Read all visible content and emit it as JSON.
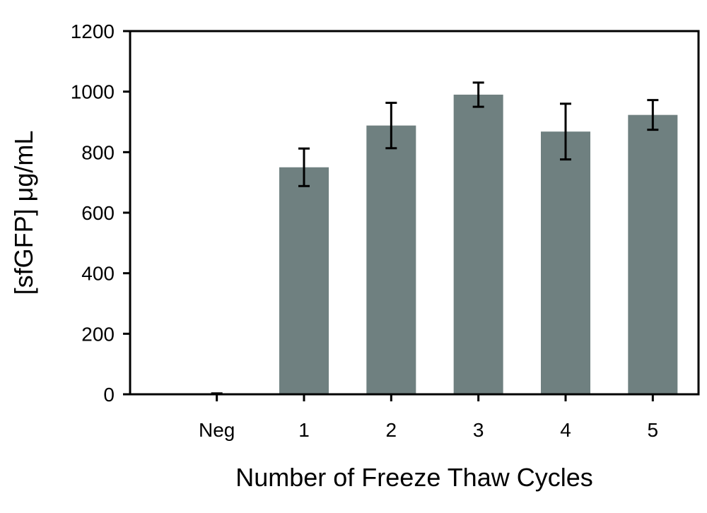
{
  "chart_data": {
    "type": "bar",
    "title": "",
    "xlabel": "Number of Freeze Thaw Cycles",
    "ylabel": "[sfGFP] μg/mL",
    "categories": [
      "Neg",
      "1",
      "2",
      "3",
      "4",
      "5"
    ],
    "values": [
      0,
      750,
      888,
      990,
      868,
      923
    ],
    "error": [
      3,
      62,
      75,
      40,
      92,
      49
    ],
    "ylim": [
      0,
      1200
    ],
    "yticks": [
      0,
      200,
      400,
      600,
      800,
      1000,
      1200
    ],
    "grid": false,
    "legend": "none",
    "bar_color": "#6f8080",
    "axis_color": "#000000"
  }
}
